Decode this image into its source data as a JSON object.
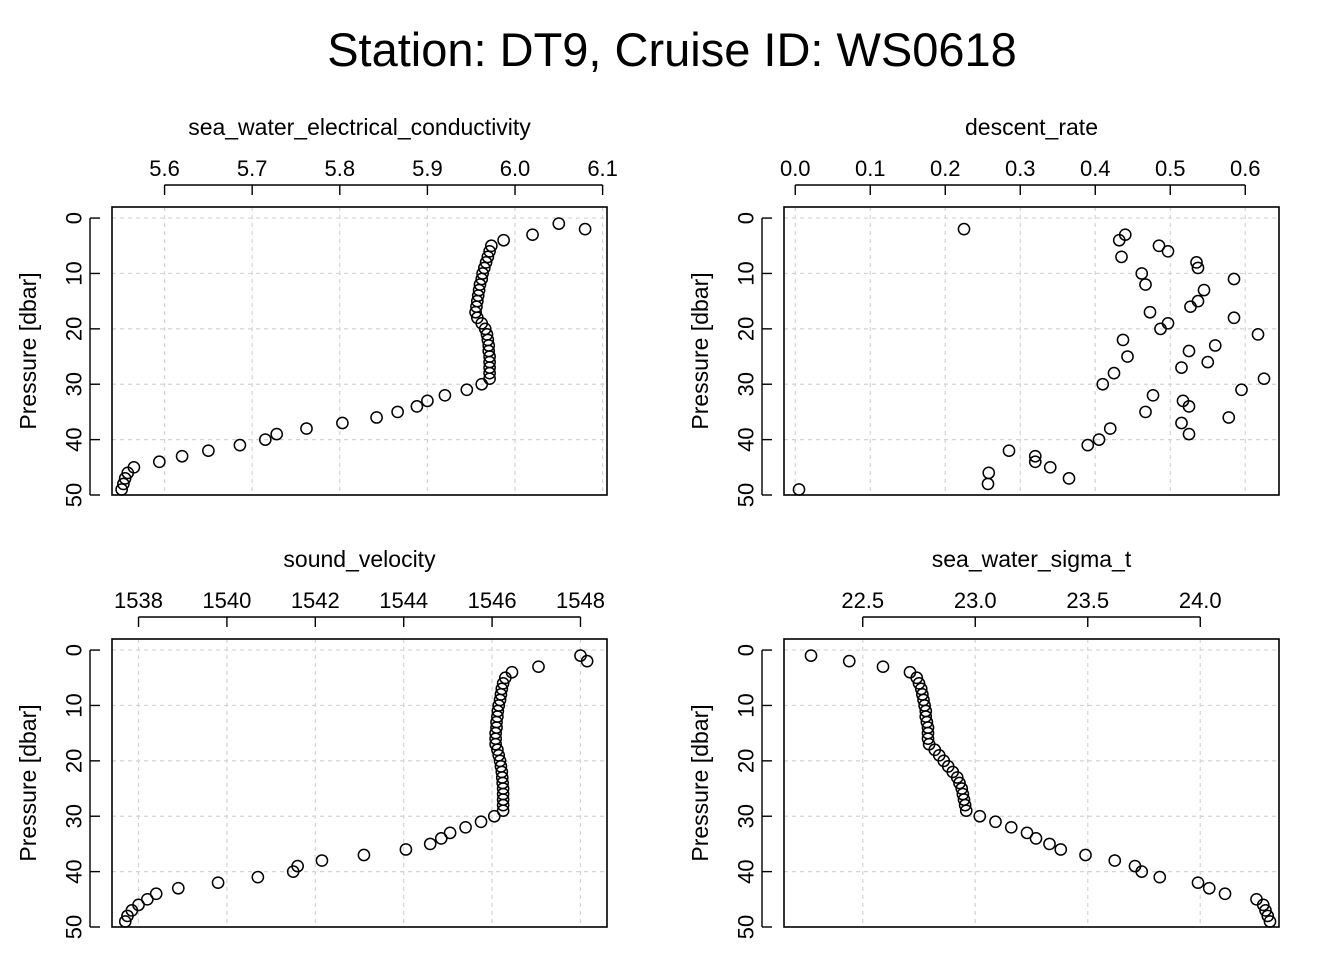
{
  "title": "Station: DT9, Cruise ID: WS0618",
  "chart_data": [
    {
      "type": "scatter",
      "title": "sea_water_electrical_conductivity",
      "xlabel": "",
      "ylabel": "Pressure [dbar]",
      "xlim": [
        5.54,
        6.105
      ],
      "ylim": [
        50,
        -2
      ],
      "x_ticks": [
        5.6,
        5.7,
        5.8,
        5.9,
        6.0,
        6.1
      ],
      "x_tick_labels": [
        "5.6",
        "5.7",
        "5.8",
        "5.9",
        "6.0",
        "6.1"
      ],
      "y_ticks": [
        0,
        10,
        20,
        30,
        40,
        50
      ],
      "y_tick_labels": [
        "0",
        "10",
        "20",
        "30",
        "40",
        "50"
      ],
      "grid": true,
      "x": [
        6.05,
        6.08,
        6.02,
        5.987,
        5.973,
        5.971,
        5.969,
        5.967,
        5.965,
        5.963,
        5.962,
        5.96,
        5.959,
        5.958,
        5.957,
        5.956,
        5.955,
        5.957,
        5.962,
        5.966,
        5.968,
        5.969,
        5.97,
        5.97,
        5.971,
        5.971,
        5.971,
        5.971,
        5.971,
        5.962,
        5.945,
        5.92,
        5.9,
        5.888,
        5.866,
        5.842,
        5.803,
        5.762,
        5.728,
        5.715,
        5.686,
        5.65,
        5.62,
        5.594,
        5.565,
        5.558,
        5.555,
        5.553,
        5.551
      ],
      "y": [
        1,
        2,
        3,
        4,
        5,
        6,
        7,
        8,
        9,
        10,
        11,
        12,
        13,
        14,
        15,
        16,
        17,
        18,
        19,
        20,
        21,
        22,
        23,
        24,
        25,
        26,
        27,
        28,
        29,
        30,
        31,
        32,
        33,
        34,
        35,
        36,
        37,
        38,
        39,
        40,
        41,
        42,
        43,
        44,
        45,
        46,
        47,
        48,
        49
      ]
    },
    {
      "type": "scatter",
      "title": "descent_rate",
      "xlabel": "",
      "ylabel": "Pressure [dbar]",
      "xlim": [
        -0.015,
        0.645
      ],
      "ylim": [
        50,
        -2
      ],
      "x_ticks": [
        0.0,
        0.1,
        0.2,
        0.3,
        0.4,
        0.5,
        0.6
      ],
      "x_tick_labels": [
        "0.0",
        "0.1",
        "0.2",
        "0.3",
        "0.4",
        "0.5",
        "0.6"
      ],
      "y_ticks": [
        0,
        10,
        20,
        30,
        40,
        50
      ],
      "y_tick_labels": [
        "0",
        "10",
        "20",
        "30",
        "40",
        "50"
      ],
      "grid": true,
      "x": [
        0.225,
        0.44,
        0.432,
        0.485,
        0.497,
        0.435,
        0.535,
        0.537,
        0.462,
        0.585,
        0.467,
        0.545,
        0.537,
        0.527,
        0.473,
        0.585,
        0.497,
        0.487,
        0.617,
        0.437,
        0.56,
        0.525,
        0.443,
        0.55,
        0.515,
        0.425,
        0.625,
        0.41,
        0.595,
        0.477,
        0.517,
        0.525,
        0.467,
        0.578,
        0.515,
        0.42,
        0.525,
        0.39,
        0.405,
        0.285,
        0.32,
        0.32,
        0.34,
        0.258,
        0.365,
        0.257,
        0.005
      ],
      "y": [
        2,
        3,
        4,
        5,
        6,
        7,
        8,
        9,
        10,
        11,
        12,
        13,
        15,
        16,
        17,
        18,
        19,
        20,
        21,
        22,
        23,
        24,
        25,
        26,
        27,
        28,
        29,
        30,
        31,
        32,
        33,
        34,
        35,
        36,
        37,
        38,
        39,
        41,
        40,
        42,
        43,
        44,
        45,
        46,
        47,
        48,
        49
      ]
    },
    {
      "type": "scatter",
      "title": "sound_velocity",
      "xlabel": "",
      "ylabel": "Pressure [dbar]",
      "xlim": [
        1537.4,
        1548.6
      ],
      "ylim": [
        50,
        -2
      ],
      "x_ticks": [
        1538,
        1540,
        1542,
        1544,
        1546,
        1548
      ],
      "x_tick_labels": [
        "1538",
        "1540",
        "1542",
        "1544",
        "1546",
        "1548"
      ],
      "y_ticks": [
        0,
        10,
        20,
        30,
        40,
        50
      ],
      "y_tick_labels": [
        "0",
        "10",
        "20",
        "30",
        "40",
        "50"
      ],
      "grid": true,
      "x": [
        1548,
        1548.15,
        1547.05,
        1546.45,
        1546.3,
        1546.25,
        1546.22,
        1546.2,
        1546.18,
        1546.15,
        1546.13,
        1546.12,
        1546.1,
        1546.1,
        1546.08,
        1546.08,
        1546.08,
        1546.12,
        1546.15,
        1546.18,
        1546.2,
        1546.22,
        1546.23,
        1546.24,
        1546.25,
        1546.25,
        1546.25,
        1546.25,
        1546.25,
        1546.05,
        1545.75,
        1545.4,
        1545.05,
        1544.85,
        1544.6,
        1544.05,
        1543.1,
        1542.15,
        1541.6,
        1541.5,
        1540.7,
        1539.8,
        1538.9,
        1538.4,
        1538.2,
        1538,
        1537.85,
        1537.75,
        1537.7
      ],
      "y": [
        1,
        2,
        3,
        4,
        5,
        6,
        7,
        8,
        9,
        10,
        11,
        12,
        13,
        14,
        15,
        16,
        17,
        18,
        19,
        20,
        21,
        22,
        23,
        24,
        25,
        26,
        27,
        28,
        29,
        30,
        31,
        32,
        33,
        34,
        35,
        36,
        37,
        38,
        39,
        40,
        41,
        42,
        43,
        44,
        45,
        46,
        47,
        48,
        49
      ]
    },
    {
      "type": "scatter",
      "title": "sea_water_sigma_t",
      "xlabel": "",
      "ylabel": "Pressure [dbar]",
      "xlim": [
        22.15,
        24.35
      ],
      "ylim": [
        50,
        -2
      ],
      "x_ticks": [
        22.5,
        23.0,
        23.5,
        24.0
      ],
      "x_tick_labels": [
        "22.5",
        "23.0",
        "23.5",
        "24.0"
      ],
      "y_ticks": [
        0,
        10,
        20,
        30,
        40,
        50
      ],
      "y_tick_labels": [
        "0",
        "10",
        "20",
        "30",
        "40",
        "50"
      ],
      "grid": true,
      "x": [
        22.27,
        22.44,
        22.59,
        22.71,
        22.74,
        22.75,
        22.76,
        22.765,
        22.77,
        22.775,
        22.78,
        22.78,
        22.785,
        22.79,
        22.79,
        22.79,
        22.795,
        22.82,
        22.84,
        22.86,
        22.88,
        22.9,
        22.92,
        22.93,
        22.94,
        22.945,
        22.95,
        22.955,
        22.96,
        23.02,
        23.09,
        23.16,
        23.23,
        23.27,
        23.33,
        23.38,
        23.49,
        23.62,
        23.71,
        23.74,
        23.82,
        23.99,
        24.04,
        24.11,
        24.25,
        24.28,
        24.29,
        24.3,
        24.31
      ],
      "y": [
        1,
        2,
        3,
        4,
        5,
        6,
        7,
        8,
        9,
        10,
        11,
        12,
        13,
        14,
        15,
        16,
        17,
        18,
        19,
        20,
        21,
        22,
        23,
        24,
        25,
        26,
        27,
        28,
        29,
        30,
        31,
        32,
        33,
        34,
        35,
        36,
        37,
        38,
        39,
        40,
        41,
        42,
        43,
        44,
        45,
        46,
        47,
        48,
        49
      ]
    }
  ]
}
